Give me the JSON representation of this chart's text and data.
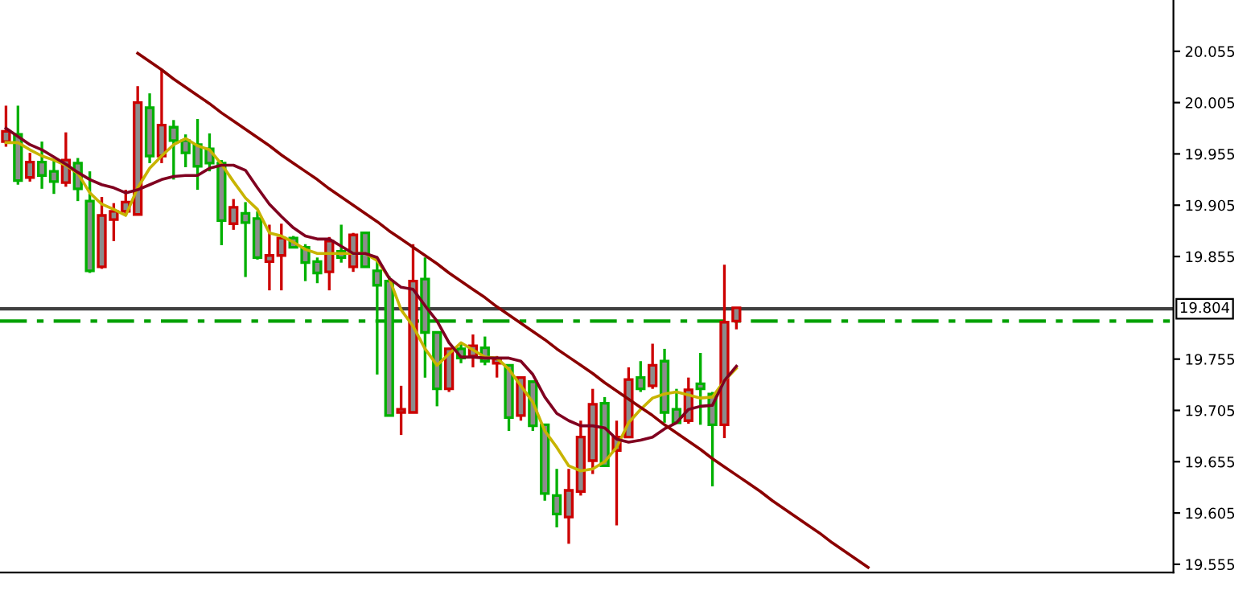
{
  "chart_data": {
    "type": "candlestick",
    "categories": [
      null,
      null,
      null,
      null,
      null,
      null,
      null,
      null,
      null,
      null,
      null,
      null,
      null,
      null,
      null,
      null,
      null,
      null,
      null,
      null,
      null,
      null,
      null,
      null,
      null,
      null,
      null,
      null,
      null,
      null,
      null,
      null,
      null,
      null,
      null,
      null,
      null,
      null,
      null,
      null,
      null,
      null,
      null,
      null,
      null,
      null,
      null,
      null,
      null,
      null,
      null,
      null,
      null,
      null,
      null,
      null,
      null,
      null,
      null,
      null,
      null,
      null,
      null,
      null,
      null,
      null,
      null,
      null,
      null,
      null,
      null,
      null,
      null,
      null,
      null,
      null,
      null,
      null,
      null,
      null,
      null,
      null,
      null,
      null,
      null,
      null,
      null,
      null,
      null,
      null,
      null,
      null,
      null,
      null,
      null,
      null,
      null,
      null
    ],
    "ohlc": [
      [
        19.967,
        20.002,
        19.962,
        19.977
      ],
      [
        19.974,
        20.002,
        19.925,
        19.929
      ],
      [
        19.932,
        19.956,
        19.928,
        19.947
      ],
      [
        19.947,
        19.967,
        19.921,
        19.934
      ],
      [
        19.938,
        19.949,
        19.916,
        19.928
      ],
      [
        19.927,
        19.976,
        19.923,
        19.949
      ],
      [
        19.946,
        19.951,
        19.909,
        19.921
      ],
      [
        19.909,
        19.938,
        19.839,
        19.841
      ],
      [
        19.845,
        19.913,
        19.843,
        19.895
      ],
      [
        19.891,
        19.907,
        19.87,
        19.899
      ],
      [
        19.899,
        19.92,
        19.895,
        19.908
      ],
      [
        19.896,
        20.021,
        19.896,
        20.005
      ],
      [
        20.0,
        20.014,
        19.946,
        19.953
      ],
      [
        19.953,
        20.037,
        19.946,
        19.983
      ],
      [
        19.981,
        19.988,
        19.93,
        19.968
      ],
      [
        19.968,
        19.974,
        19.942,
        19.956
      ],
      [
        19.964,
        19.989,
        19.92,
        19.943
      ],
      [
        19.96,
        19.975,
        19.938,
        19.946
      ],
      [
        19.946,
        19.949,
        19.866,
        19.89
      ],
      [
        19.887,
        19.911,
        19.881,
        19.903
      ],
      [
        19.897,
        19.908,
        19.835,
        19.888
      ],
      [
        19.892,
        19.899,
        19.852,
        19.854
      ],
      [
        19.85,
        19.886,
        19.822,
        19.856
      ],
      [
        19.856,
        19.887,
        19.822,
        19.873
      ],
      [
        19.873,
        19.875,
        19.864,
        19.864
      ],
      [
        19.864,
        19.867,
        19.831,
        19.849
      ],
      [
        19.85,
        19.854,
        19.829,
        19.839
      ],
      [
        19.84,
        19.874,
        19.822,
        19.87
      ],
      [
        19.86,
        19.886,
        19.849,
        19.854
      ],
      [
        19.845,
        19.878,
        19.84,
        19.876
      ],
      [
        19.878,
        19.878,
        19.845,
        19.845
      ],
      [
        19.841,
        19.852,
        19.74,
        19.827
      ],
      [
        19.831,
        19.836,
        19.7,
        19.7
      ],
      [
        19.703,
        19.729,
        19.681,
        19.706
      ],
      [
        19.703,
        19.867,
        19.703,
        19.831
      ],
      [
        19.833,
        19.854,
        19.737,
        19.781
      ],
      [
        19.781,
        19.781,
        19.709,
        19.726
      ],
      [
        19.726,
        19.766,
        19.723,
        19.765
      ],
      [
        19.765,
        19.77,
        19.751,
        19.756
      ],
      [
        19.758,
        19.779,
        19.747,
        19.768
      ],
      [
        19.766,
        19.777,
        19.749,
        19.753
      ],
      [
        19.751,
        19.758,
        19.737,
        19.755
      ],
      [
        19.749,
        19.749,
        19.685,
        19.698
      ],
      [
        19.7,
        19.737,
        19.695,
        19.737
      ],
      [
        19.733,
        19.734,
        19.685,
        19.69
      ],
      [
        19.691,
        19.691,
        19.617,
        19.624
      ],
      [
        19.622,
        19.648,
        19.591,
        19.604
      ],
      [
        19.601,
        19.648,
        19.575,
        19.627
      ],
      [
        19.626,
        19.695,
        19.622,
        19.679
      ],
      [
        19.656,
        19.726,
        19.643,
        19.711
      ],
      [
        19.712,
        19.718,
        19.651,
        19.651
      ],
      [
        19.666,
        19.695,
        19.593,
        19.679
      ],
      [
        19.679,
        19.747,
        19.679,
        19.735
      ],
      [
        19.737,
        19.753,
        19.723,
        19.726
      ],
      [
        19.729,
        19.77,
        19.726,
        19.749
      ],
      [
        19.753,
        19.765,
        19.693,
        19.703
      ],
      [
        19.706,
        19.726,
        19.693,
        19.693
      ],
      [
        19.695,
        19.737,
        19.692,
        19.725
      ],
      [
        19.731,
        19.761,
        19.691,
        19.726
      ],
      [
        19.721,
        19.723,
        19.631,
        19.691
      ],
      [
        19.691,
        19.847,
        19.678,
        19.791
      ],
      [
        19.792,
        19.805,
        19.784,
        19.805
      ],
      null,
      null,
      null,
      null,
      null,
      null,
      null,
      null,
      null,
      null,
      null,
      null,
      null,
      null,
      null,
      null,
      null,
      null,
      null,
      null,
      null,
      null,
      null,
      null,
      null,
      null,
      null,
      null,
      null,
      null,
      null,
      null,
      null,
      null,
      null,
      null
    ],
    "colors": [
      "#cc0000",
      "#00b000",
      "#cc0000",
      "#00b000",
      "#00b000",
      "#cc0000",
      "#00b000",
      "#00b000",
      "#cc0000",
      "#cc0000",
      "#cc0000",
      "#cc0000",
      "#00b000",
      "#cc0000",
      "#00b000",
      "#00b000",
      "#00b000",
      "#00b000",
      "#00b000",
      "#cc0000",
      "#00b000",
      "#00b000",
      "#cc0000",
      "#cc0000",
      "#00b000",
      "#00b000",
      "#00b000",
      "#cc0000",
      "#00b000",
      "#cc0000",
      "#00b000",
      "#00b000",
      "#00b000",
      "#cc0000",
      "#cc0000",
      "#00b000",
      "#00b000",
      "#cc0000",
      "#00b000",
      "#cc0000",
      "#00b000",
      "#cc0000",
      "#00b000",
      "#cc0000",
      "#00b000",
      "#00b000",
      "#00b000",
      "#cc0000",
      "#cc0000",
      "#cc0000",
      "#00b000",
      "#cc0000",
      "#cc0000",
      "#00b000",
      "#cc0000",
      "#00b000",
      "#00b000",
      "#cc0000",
      "#00b000",
      "#00b000",
      "#cc0000",
      "#cc0000",
      null,
      null,
      null,
      null,
      null,
      null,
      null,
      null,
      null,
      null,
      null,
      null,
      null,
      null,
      null,
      null,
      null,
      null,
      null,
      null,
      null,
      null,
      null,
      null,
      null,
      null,
      null,
      null,
      null,
      null,
      null,
      null,
      null,
      null,
      null,
      null
    ],
    "series": [
      {
        "type": "line",
        "color": "#c8b400",
        "values": [
          19.966,
          19.966,
          19.959,
          19.953,
          19.949,
          19.944,
          19.936,
          19.917,
          19.906,
          19.901,
          19.895,
          19.922,
          19.941,
          19.953,
          19.964,
          19.97,
          19.963,
          19.959,
          19.945,
          19.928,
          19.912,
          19.901,
          19.878,
          19.875,
          19.869,
          19.862,
          19.858,
          19.858,
          19.858,
          19.858,
          19.858,
          19.851,
          19.834,
          19.803,
          19.787,
          19.765,
          19.749,
          19.76,
          19.771,
          19.764,
          19.757,
          19.756,
          19.745,
          19.729,
          19.713,
          19.685,
          19.669,
          19.651,
          19.646,
          19.648,
          19.655,
          19.669,
          19.693,
          19.706,
          19.717,
          19.721,
          19.723,
          19.72,
          19.717,
          19.718,
          19.734,
          19.746,
          null,
          null,
          null,
          null,
          null,
          null,
          null,
          null,
          null,
          null,
          null,
          null,
          null,
          null,
          null,
          null,
          null,
          null,
          null,
          null,
          null,
          null,
          null,
          null,
          null,
          null,
          null,
          null,
          null,
          null,
          null,
          null,
          null,
          null,
          null,
          null
        ]
      },
      {
        "type": "line",
        "color": "#800020",
        "values": [
          19.98,
          19.972,
          19.964,
          19.959,
          19.952,
          19.945,
          19.937,
          19.93,
          19.925,
          19.922,
          19.917,
          19.92,
          19.925,
          19.93,
          19.933,
          19.934,
          19.934,
          19.941,
          19.944,
          19.944,
          19.939,
          19.922,
          19.906,
          19.894,
          19.883,
          19.875,
          19.872,
          19.872,
          19.865,
          19.858,
          19.858,
          19.854,
          19.834,
          19.825,
          19.823,
          19.807,
          19.792,
          19.771,
          19.757,
          19.757,
          19.756,
          19.756,
          19.756,
          19.753,
          19.74,
          19.718,
          19.702,
          19.695,
          19.69,
          19.69,
          19.688,
          19.677,
          19.674,
          19.676,
          19.679,
          19.687,
          19.693,
          19.706,
          19.709,
          19.71,
          19.734,
          19.748,
          null,
          null,
          null,
          null,
          null,
          null,
          null,
          null,
          null,
          null,
          null,
          null,
          null,
          null,
          null,
          null,
          null,
          null,
          null,
          null,
          null,
          null,
          null,
          null,
          null,
          null,
          null,
          null,
          null,
          null,
          null,
          null,
          null,
          null,
          null,
          null
        ]
      },
      {
        "type": "line",
        "color": "#8b0000",
        "values": [
          null,
          null,
          null,
          null,
          null,
          null,
          null,
          null,
          null,
          null,
          null,
          20.053,
          20.045,
          20.037,
          20.028,
          20.02,
          20.012,
          20.004,
          19.995,
          19.987,
          19.979,
          19.971,
          19.963,
          19.954,
          19.946,
          19.938,
          19.93,
          19.921,
          19.913,
          19.905,
          19.897,
          19.889,
          19.88,
          19.872,
          19.864,
          19.856,
          19.848,
          19.839,
          19.831,
          19.823,
          19.815,
          19.806,
          19.798,
          19.79,
          19.782,
          19.774,
          19.765,
          19.757,
          19.749,
          19.741,
          19.732,
          19.724,
          19.716,
          19.708,
          19.7,
          19.691,
          19.683,
          19.675,
          19.667,
          19.658,
          19.65,
          19.642,
          19.634,
          19.626,
          19.617,
          19.609,
          19.601,
          19.593,
          19.585,
          19.576,
          19.568,
          19.56,
          19.552,
          null,
          null,
          null,
          null,
          null,
          null,
          null,
          null,
          null,
          null,
          null,
          null,
          null,
          null,
          null,
          null,
          null,
          null,
          null,
          null,
          null,
          null,
          null,
          null,
          null
        ]
      }
    ],
    "ref_lines": [
      {
        "axis": "y",
        "value": 19.804,
        "label": "19.804",
        "color": "#404040",
        "line_style": "solid"
      },
      {
        "axis": "y",
        "value": 19.792,
        "color": "#00a000",
        "line_style": "dashed"
      }
    ],
    "ylim": [
      19.547,
      20.105
    ],
    "yticks": [
      19.555,
      19.605,
      19.655,
      19.705,
      19.755,
      19.855,
      19.905,
      19.955,
      20.005,
      20.055
    ],
    "tick_labels": "y",
    "grid": false,
    "legend": false
  }
}
